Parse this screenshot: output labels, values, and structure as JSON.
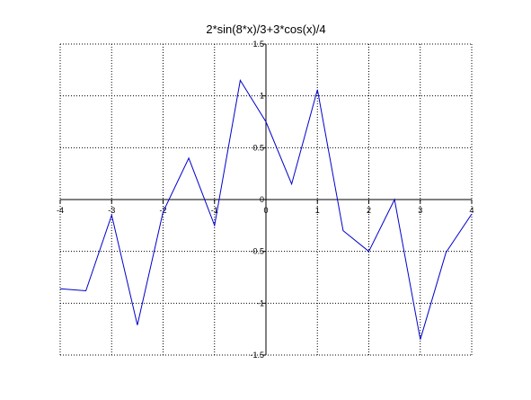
{
  "chart_data": {
    "type": "line",
    "title": "2*sin(8*x)/3+3*cos(x)/4",
    "xlabel": "",
    "ylabel": "",
    "xlim": [
      -4,
      4
    ],
    "ylim": [
      -1.5,
      1.5
    ],
    "grid": true,
    "grid_style": "dotted",
    "axes_through_origin": true,
    "x_ticks": [
      "-4",
      "-3",
      "-2",
      "-1",
      "0",
      "1",
      "2",
      "3",
      "4"
    ],
    "y_ticks": [
      "-1.5",
      "-1",
      "-0.5",
      "0",
      "0.5",
      "1",
      "1.5"
    ],
    "line_color": "#0000cc",
    "series": [
      {
        "x": [
          -4,
          -3.5,
          -3,
          -2.5,
          -2,
          -1.5,
          -1,
          -0.5,
          0,
          0.5,
          1,
          1.5,
          2,
          2.5,
          3,
          3.5,
          4
        ],
        "y": [
          -0.86,
          -0.88,
          -0.15,
          -1.21,
          -0.12,
          0.4,
          -0.25,
          1.15,
          0.75,
          0.15,
          1.06,
          -0.3,
          -0.5,
          0.0,
          -1.35,
          -0.51,
          -0.14
        ]
      }
    ]
  }
}
